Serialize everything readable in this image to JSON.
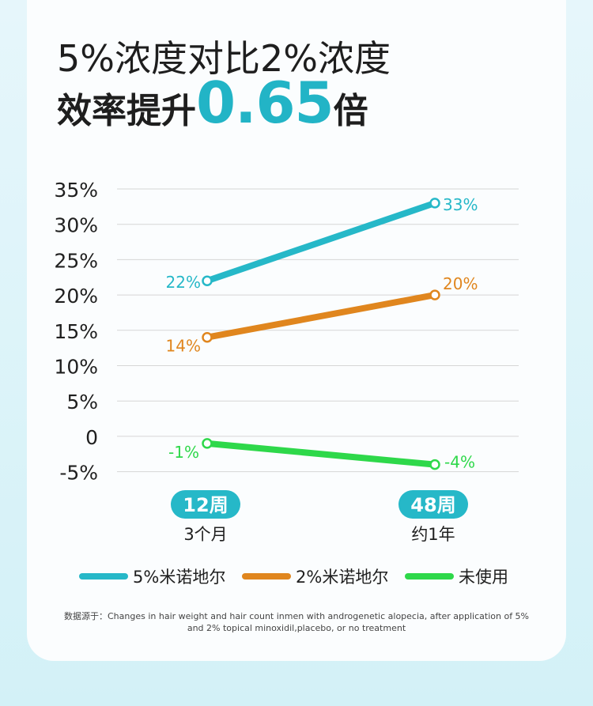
{
  "title": {
    "line1": "5%浓度对比2%浓度",
    "line2_prefix": "效率提升",
    "line2_highlight": "0.65",
    "line2_suffix": "倍"
  },
  "colors": {
    "teal": "#26b8c8",
    "orange": "#e0861e",
    "green": "#2ed84a",
    "grid": "#d6d6d6",
    "pill": "#26b8c8"
  },
  "chart_data": {
    "type": "line",
    "categories": [
      "12周",
      "48周"
    ],
    "category_sublabels": [
      "3个月",
      "约1年"
    ],
    "y_ticks": [
      "35%",
      "30%",
      "25%",
      "20%",
      "15%",
      "10%",
      "5%",
      "0",
      "-5%"
    ],
    "ylim": [
      -5,
      35
    ],
    "series": [
      {
        "name": "5%米诺地尔",
        "values": [
          22,
          33
        ],
        "labels": [
          "22%",
          "33%"
        ],
        "color": "#26b8c8"
      },
      {
        "name": "2%米诺地尔",
        "values": [
          14,
          20
        ],
        "labels": [
          "14%",
          "20%"
        ],
        "color": "#e0861e"
      },
      {
        "name": "未使用",
        "values": [
          -1,
          -4
        ],
        "labels": [
          "-1%",
          "-4%"
        ],
        "color": "#2ed84a"
      }
    ]
  },
  "source_note": "数据源于：Changes in hair weight and hair count inmen with androgenetic alopecia, after application of 5% and 2% topical minoxidil,placebo, or no treatment"
}
